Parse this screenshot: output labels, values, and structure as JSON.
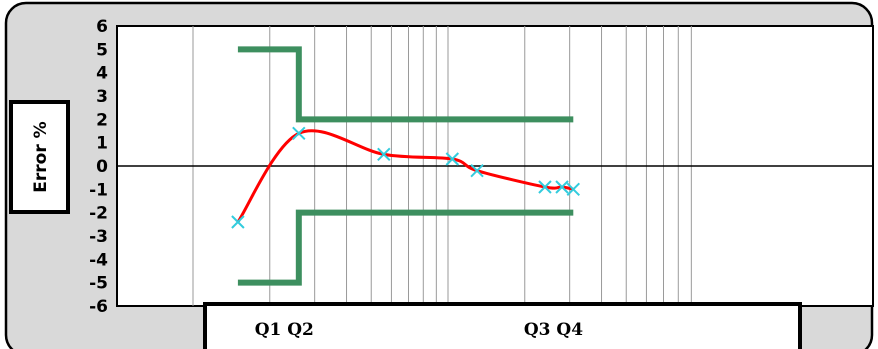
{
  "chart_data": {
    "type": "line",
    "ylabel": "Error %",
    "ylim": [
      -6,
      6
    ],
    "yticks": [
      "6",
      "5",
      "4",
      "3",
      "2",
      "1",
      "0",
      "-1",
      "-2",
      "-3",
      "-4",
      "-5",
      "-6"
    ],
    "xscale": "log",
    "grid": true,
    "x_markers": [
      {
        "label": "Q1",
        "x": 1
      },
      {
        "label": "Q2",
        "x": 1.3
      },
      {
        "label": "Q3",
        "x": 12
      },
      {
        "label": "Q4",
        "x": 14
      }
    ],
    "series": [
      {
        "role": "measured-error",
        "color": "#ff0000",
        "marker_color": "#33ccdd",
        "x": [
          0.75,
          1.3,
          2.8,
          5.2,
          6.5,
          12,
          14,
          15.5
        ],
        "y": [
          -2.4,
          1.4,
          0.5,
          0.3,
          -0.2,
          -0.9,
          -0.9,
          -1.0
        ]
      },
      {
        "role": "upper-limit",
        "color": "#3d8f5f",
        "x": [
          0.75,
          1.3,
          1.3,
          15.5
        ],
        "y": [
          5,
          5,
          2,
          2
        ]
      },
      {
        "role": "lower-limit",
        "color": "#3d8f5f",
        "x": [
          0.75,
          1.3,
          1.3,
          15.5
        ],
        "y": [
          -5,
          -5,
          -2,
          -2
        ]
      }
    ]
  }
}
